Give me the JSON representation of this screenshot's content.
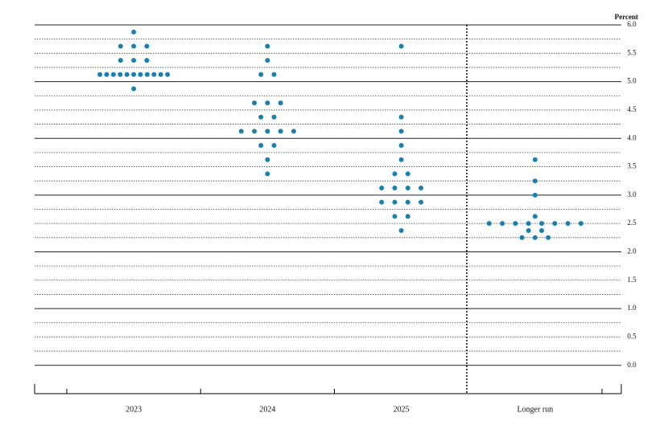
{
  "chart_data": {
    "type": "dot",
    "y_label": "Percent",
    "categories": [
      "2023",
      "2024",
      "2025",
      "Longer run"
    ],
    "values": [
      [
        5.875,
        5.625,
        5.625,
        5.625,
        5.375,
        5.375,
        5.375,
        5.125,
        5.125,
        5.125,
        5.125,
        5.125,
        5.125,
        5.125,
        5.125,
        5.125,
        5.125,
        5.125,
        4.875
      ],
      [
        5.625,
        5.375,
        5.125,
        5.125,
        4.625,
        4.625,
        4.625,
        4.375,
        4.375,
        4.125,
        4.125,
        4.125,
        4.125,
        4.125,
        3.875,
        3.875,
        3.625,
        3.375
      ],
      [
        5.625,
        4.375,
        4.125,
        3.875,
        3.625,
        3.375,
        3.375,
        3.125,
        3.125,
        3.125,
        3.125,
        2.875,
        2.875,
        2.875,
        2.875,
        2.625,
        2.625,
        2.375
      ],
      [
        3.625,
        3.25,
        3.0,
        2.625,
        2.5,
        2.5,
        2.5,
        2.5,
        2.5,
        2.5,
        2.5,
        2.5,
        2.375,
        2.375,
        2.25,
        2.25,
        2.25
      ]
    ],
    "color": "#1b7fb0",
    "ylim": [
      -0.5,
      6.0
    ],
    "yticks": [
      {
        "value": 0,
        "label": "0.0"
      },
      0.5,
      {
        "value": 1,
        "label": "1.0"
      },
      1.5,
      {
        "value": 2,
        "label": "2.0"
      },
      2.5,
      {
        "value": 3,
        "label": "3.0"
      },
      3.5,
      {
        "value": 4,
        "label": "4.0"
      },
      4.5,
      {
        "value": 5,
        "label": "5.0"
      },
      5.5,
      {
        "value": 6,
        "label": "6.0"
      }
    ],
    "minor_yticks": [
      0.25,
      0.75,
      1.25,
      1.75,
      2.25,
      2.75,
      3.25,
      3.75,
      4.25,
      4.75,
      5.25,
      5.75
    ],
    "grid": true
  }
}
